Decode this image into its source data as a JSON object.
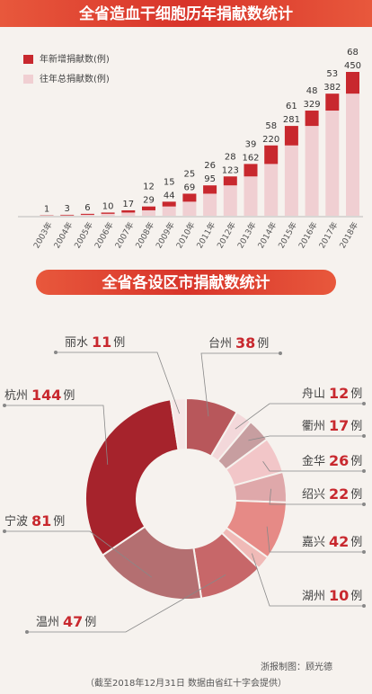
{
  "chart_data": [
    {
      "type": "bar",
      "title": "全省造血干细胞历年捐献数统计",
      "categories": [
        "2003年",
        "2004年",
        "2005年",
        "2006年",
        "2007年",
        "2008年",
        "2009年",
        "2010年",
        "2011年",
        "2012年",
        "2013年",
        "2014年",
        "2015年",
        "2016年",
        "2017年",
        "2018年"
      ],
      "series": [
        {
          "name": "往年总捐献数(例)",
          "color": "#f0cfd2",
          "values": [
            0,
            1,
            3,
            6,
            10,
            17,
            29,
            44,
            69,
            95,
            123,
            162,
            220,
            281,
            329,
            382
          ]
        },
        {
          "name": "年新增捐献数(例)",
          "color": "#c8282e",
          "values": [
            1,
            2,
            3,
            4,
            7,
            12,
            15,
            25,
            26,
            28,
            39,
            58,
            61,
            48,
            53,
            68
          ],
          "value_labels": [
            null,
            null,
            null,
            null,
            null,
            "12",
            "15",
            "25",
            "26",
            "28",
            "39",
            "58",
            "61",
            "48",
            "53",
            "68"
          ]
        }
      ],
      "totals": [
        1,
        3,
        6,
        10,
        17,
        29,
        44,
        69,
        95,
        123,
        162,
        220,
        281,
        329,
        382,
        450
      ],
      "stacked": true
    },
    {
      "type": "donut",
      "title": "全省各设区市捐献数统计",
      "unit": "例",
      "categories": [
        "台州",
        "舟山",
        "衢州",
        "金华",
        "绍兴",
        "嘉兴",
        "湖州",
        "温州",
        "宁波",
        "杭州",
        "丽水"
      ],
      "values": [
        38,
        12,
        17,
        26,
        22,
        42,
        10,
        47,
        81,
        144,
        11
      ],
      "colors": [
        "#b8575b",
        "#f3d8da",
        "#c79ea0",
        "#f2c6c8",
        "#dfa8aa",
        "#e68a86",
        "#f0bab7",
        "#c76769",
        "#b46f71",
        "#a6232c",
        "#f6e7e7"
      ]
    }
  ],
  "footer": {
    "credit": "浙报制图：顾光德",
    "note": "（截至2018年12月31日 数据由省红十字会提供）"
  }
}
